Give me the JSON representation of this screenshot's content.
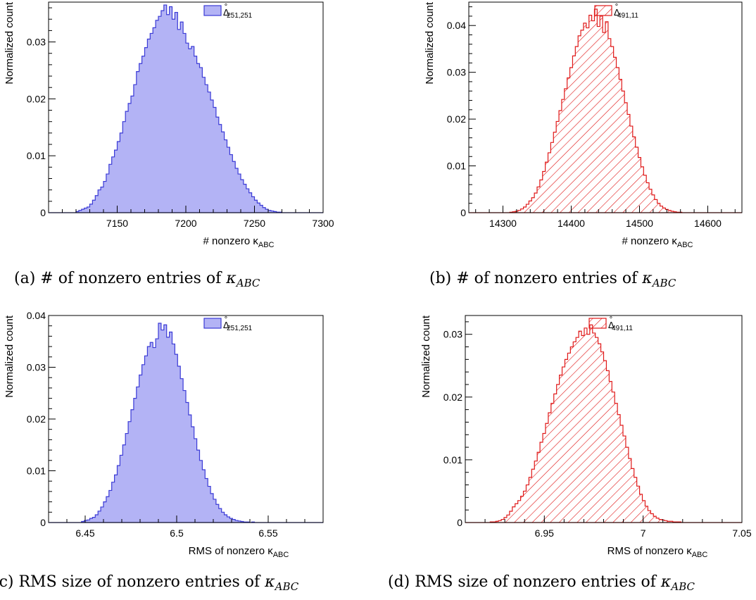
{
  "chart_data": [
    {
      "id": "a",
      "type": "histogram",
      "fill": "solid",
      "color": "#3a3ad6",
      "fill_color": "#b3b3f5",
      "xlabel": "# nonzero κ",
      "xlabel_sub": "ABC",
      "ylabel": "Normalized count",
      "xlim": [
        7100,
        7300
      ],
      "ylim": [
        0,
        0.037
      ],
      "xticks": [
        7150,
        7200,
        7250,
        7300
      ],
      "yticks": [
        0,
        0.01,
        0.02,
        0.03
      ],
      "ytick_labels": [
        "0",
        "0.01",
        "0.02",
        "0.03"
      ],
      "legend": {
        "symbol": "Δ",
        "sup": "°",
        "sub": "251,251",
        "position": "top-right"
      },
      "caption": {
        "prefix": "(a) # of nonzero entries of ",
        "math": "κ",
        "sub": "ABC"
      },
      "bins": {
        "start": 7100,
        "width": 2,
        "values": [
          0,
          0,
          0,
          0,
          0,
          0,
          0,
          0,
          0,
          0,
          0.0002,
          0.0004,
          0.0006,
          0.0008,
          0.001,
          0.0015,
          0.0022,
          0.003,
          0.004,
          0.0045,
          0.0055,
          0.0068,
          0.0085,
          0.0098,
          0.011,
          0.0125,
          0.014,
          0.016,
          0.0178,
          0.0192,
          0.0205,
          0.0225,
          0.0248,
          0.0262,
          0.0275,
          0.029,
          0.0305,
          0.0315,
          0.0325,
          0.0338,
          0.0345,
          0.0355,
          0.0365,
          0.0348,
          0.0362,
          0.034,
          0.0352,
          0.0322,
          0.0335,
          0.0315,
          0.0298,
          0.0288,
          0.0292,
          0.0275,
          0.0262,
          0.0255,
          0.0238,
          0.0225,
          0.0212,
          0.0198,
          0.0185,
          0.0168,
          0.0155,
          0.0142,
          0.0128,
          0.0115,
          0.0102,
          0.009,
          0.0078,
          0.0068,
          0.0058,
          0.005,
          0.0042,
          0.0035,
          0.0028,
          0.0022,
          0.0017,
          0.0013,
          0.0009,
          0.0006,
          0.0004,
          0.0003,
          0.0002,
          0.0001,
          0.0001,
          0,
          0,
          0,
          0,
          0,
          0,
          0,
          0,
          0,
          0,
          0,
          0,
          0,
          0,
          0
        ]
      }
    },
    {
      "id": "b",
      "type": "histogram",
      "fill": "hatch",
      "color": "#e01818",
      "fill_color": "#e01818",
      "xlabel": "# nonzero κ",
      "xlabel_sub": "ABC",
      "ylabel": "Normalized count",
      "xlim": [
        14250,
        14650
      ],
      "ylim": [
        0,
        0.045
      ],
      "xticks": [
        14300,
        14400,
        14500,
        14600
      ],
      "yticks": [
        0,
        0.01,
        0.02,
        0.03,
        0.04
      ],
      "ytick_labels": [
        "0",
        "0.01",
        "0.02",
        "0.03",
        "0.04"
      ],
      "legend": {
        "symbol": "Δ",
        "sup": "°",
        "sub": "491,11",
        "position": "top-right"
      },
      "caption": {
        "prefix": "(b) # of nonzero entries of ",
        "math": "κ",
        "sub": "ABC"
      },
      "bins": {
        "start": 14250,
        "width": 4,
        "values": [
          0,
          0,
          0,
          0,
          0,
          0,
          0,
          0,
          0,
          0,
          0,
          0,
          0,
          0,
          0,
          0.0001,
          0.0002,
          0.0003,
          0.0005,
          0.0008,
          0.0012,
          0.0018,
          0.0025,
          0.0032,
          0.0042,
          0.0055,
          0.007,
          0.0088,
          0.0108,
          0.0128,
          0.015,
          0.0172,
          0.0195,
          0.0218,
          0.0242,
          0.0265,
          0.0288,
          0.031,
          0.0335,
          0.0355,
          0.0378,
          0.039,
          0.0405,
          0.0395,
          0.0422,
          0.041,
          0.0435,
          0.0398,
          0.042,
          0.0385,
          0.0408,
          0.0372,
          0.0355,
          0.0332,
          0.031,
          0.0285,
          0.026,
          0.0235,
          0.021,
          0.0185,
          0.0162,
          0.014,
          0.0118,
          0.0098,
          0.008,
          0.0064,
          0.005,
          0.0038,
          0.0028,
          0.002,
          0.0014,
          0.001,
          0.0007,
          0.0005,
          0.0003,
          0.0002,
          0.0001,
          0.0001,
          0,
          0,
          0,
          0,
          0,
          0,
          0,
          0,
          0,
          0,
          0,
          0,
          0,
          0,
          0,
          0,
          0,
          0,
          0,
          0,
          0,
          0
        ]
      }
    },
    {
      "id": "c",
      "type": "histogram",
      "fill": "solid",
      "color": "#3a3ad6",
      "fill_color": "#b3b3f5",
      "xlabel": "RMS of nonzero κ",
      "xlabel_sub": "ABC",
      "ylabel": "Normalized count",
      "xlim": [
        6.43,
        6.58
      ],
      "ylim": [
        0,
        0.04
      ],
      "xticks": [
        6.45,
        6.5,
        6.55
      ],
      "xtick_labels": [
        "6.45",
        "6.5",
        "6.55"
      ],
      "yticks": [
        0,
        0.01,
        0.02,
        0.03,
        0.04
      ],
      "ytick_labels": [
        "0",
        "0.01",
        "0.02",
        "0.03",
        "0.04"
      ],
      "legend": {
        "symbol": "Δ",
        "sup": "°",
        "sub": "251,251",
        "position": "top-right"
      },
      "caption": {
        "prefix": "(c) RMS size of nonzero entries of ",
        "math": "κ",
        "sub": "ABC"
      },
      "bins": {
        "start": 6.43,
        "width": 0.0015,
        "values": [
          0,
          0,
          0,
          0,
          0,
          0,
          0,
          0,
          0,
          0,
          0,
          0,
          0.0002,
          0.0004,
          0.0005,
          0.0008,
          0.001,
          0.0015,
          0.0022,
          0.003,
          0.004,
          0.005,
          0.0062,
          0.0078,
          0.0092,
          0.011,
          0.013,
          0.015,
          0.0172,
          0.0195,
          0.0218,
          0.024,
          0.0262,
          0.0285,
          0.0305,
          0.0322,
          0.034,
          0.0348,
          0.0338,
          0.0355,
          0.0385,
          0.0372,
          0.0382,
          0.0358,
          0.0368,
          0.0345,
          0.0325,
          0.0302,
          0.0278,
          0.0255,
          0.0232,
          0.0208,
          0.0185,
          0.0162,
          0.014,
          0.012,
          0.0102,
          0.0085,
          0.007,
          0.0056,
          0.0045,
          0.0035,
          0.0027,
          0.002,
          0.0015,
          0.0011,
          0.0008,
          0.0006,
          0.0004,
          0.0003,
          0.0002,
          0.0001,
          0.0001,
          0,
          0.0001,
          0,
          0,
          0,
          0,
          0,
          0,
          0,
          0,
          0,
          0,
          0,
          0,
          0,
          0,
          0,
          0,
          0,
          0,
          0,
          0,
          0,
          0,
          0,
          0,
          0
        ]
      }
    },
    {
      "id": "d",
      "type": "histogram",
      "fill": "hatch",
      "color": "#e01818",
      "fill_color": "#e01818",
      "xlabel": "RMS of nonzero κ",
      "xlabel_sub": "ABC",
      "ylabel": "Normalized count",
      "xlim": [
        6.91,
        7.05
      ],
      "ylim": [
        0,
        0.033
      ],
      "xticks": [
        6.95,
        7.0,
        7.05
      ],
      "xtick_labels": [
        "6.95",
        "7",
        "7.05"
      ],
      "yticks": [
        0,
        0.01,
        0.02,
        0.03
      ],
      "ytick_labels": [
        "0",
        "0.01",
        "0.02",
        "0.03"
      ],
      "legend": {
        "symbol": "Δ",
        "sup": "°",
        "sub": "491,11",
        "position": "top-right"
      },
      "caption": {
        "prefix": "(d) RMS size of nonzero entries of ",
        "math": "κ",
        "sub": "ABC"
      },
      "bins": {
        "start": 6.91,
        "width": 0.0014,
        "values": [
          0,
          0,
          0,
          0,
          0,
          0,
          0,
          0,
          0,
          0.0001,
          0.0001,
          0.0002,
          0.0003,
          0.0005,
          0.0008,
          0.0012,
          0.0018,
          0.0025,
          0.003,
          0.0035,
          0.0042,
          0.005,
          0.006,
          0.0072,
          0.0085,
          0.0098,
          0.0112,
          0.0128,
          0.0142,
          0.0158,
          0.0175,
          0.019,
          0.0205,
          0.022,
          0.0235,
          0.0248,
          0.026,
          0.027,
          0.028,
          0.0288,
          0.0295,
          0.0305,
          0.0298,
          0.031,
          0.03,
          0.0315,
          0.0302,
          0.0295,
          0.0285,
          0.0272,
          0.0258,
          0.0242,
          0.0225,
          0.0208,
          0.019,
          0.0172,
          0.0155,
          0.0138,
          0.012,
          0.0102,
          0.0086,
          0.0072,
          0.0058,
          0.0045,
          0.0035,
          0.0026,
          0.0019,
          0.0014,
          0.001,
          0.0007,
          0.0005,
          0.0004,
          0.0003,
          0.0002,
          0.0002,
          0.0001,
          0.0001,
          0.0001,
          0,
          0,
          0,
          0,
          0,
          0,
          0,
          0,
          0,
          0,
          0,
          0,
          0,
          0,
          0,
          0,
          0,
          0,
          0,
          0,
          0,
          0
        ]
      }
    }
  ]
}
